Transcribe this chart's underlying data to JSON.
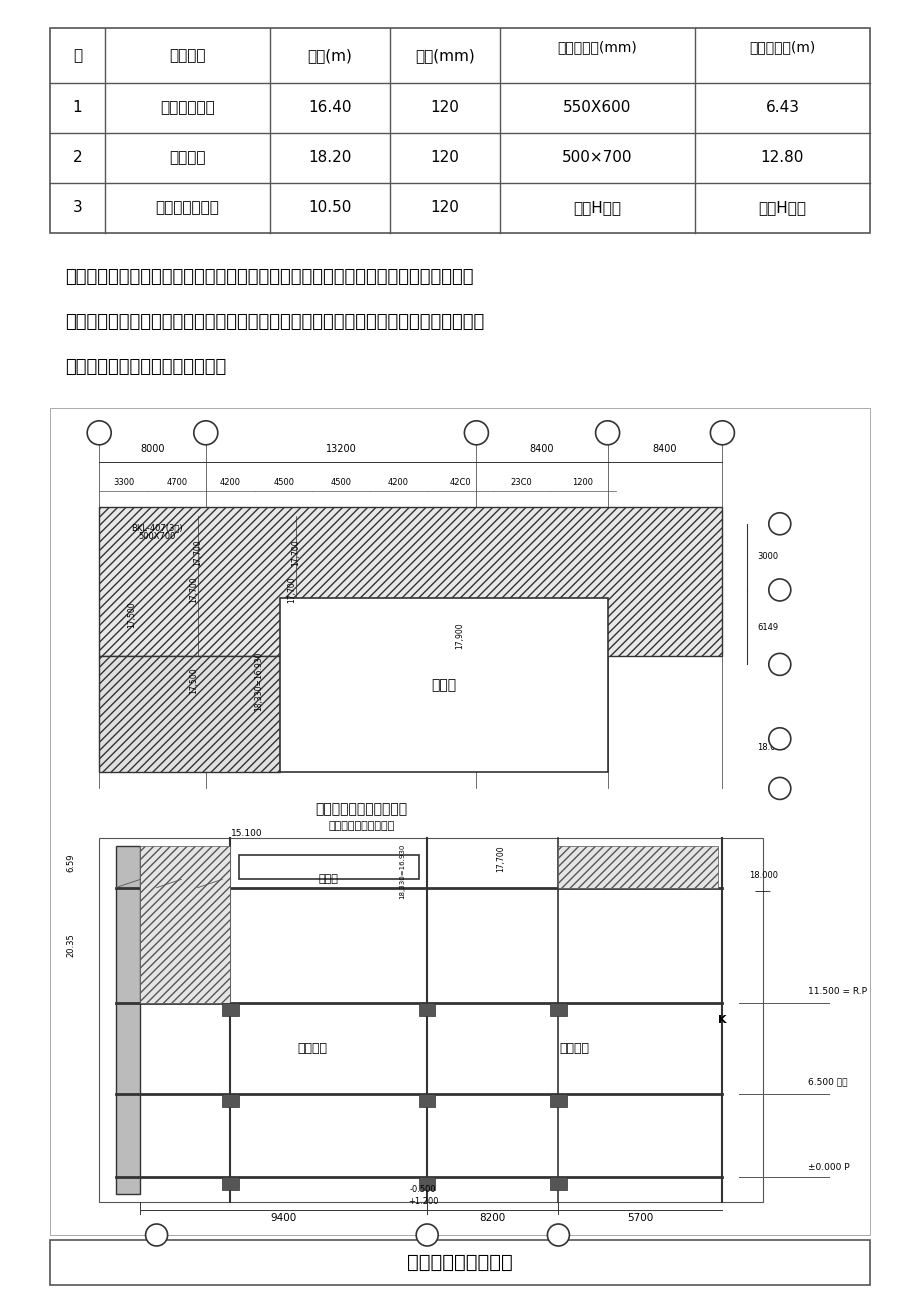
{
  "table_headers": [
    "序",
    "施工部位",
    "层高(m)",
    "板厚(mm)",
    "最大梁截面(mm)",
    "最大梁跨度(m)"
  ],
  "table_rows": [
    [
      "1",
      "酒店通高大堂",
      "16.40",
      "120",
      "550X600",
      "6.43"
    ],
    [
      "2",
      "裙房门厅",
      "18.20",
      "120",
      "500×700",
      "12.80"
    ],
    [
      "3",
      "裙房三层大宴会",
      "10.50",
      "120",
      "后置H型钢",
      "后置H型钢"
    ]
  ],
  "paragraph1": "本工程超高支模方案选择上，根据层高及上部梁、板布置，选用架体搭设最高及跨度最",
  "paragraph2": "大、梁板截面最大的裙房门厅高支撑体系作为验算，大堂及大宴会厅日匀支撑系统搭设均",
  "paragraph3": "按照裙房门厅搭设方案进行施工。",
  "bottom_caption": "酒店裙房门厅剖面图",
  "bg_color": "#ffffff",
  "text_color": "#000000",
  "table_line_color": "#555555",
  "drawing_bg": "#f0f0f0"
}
